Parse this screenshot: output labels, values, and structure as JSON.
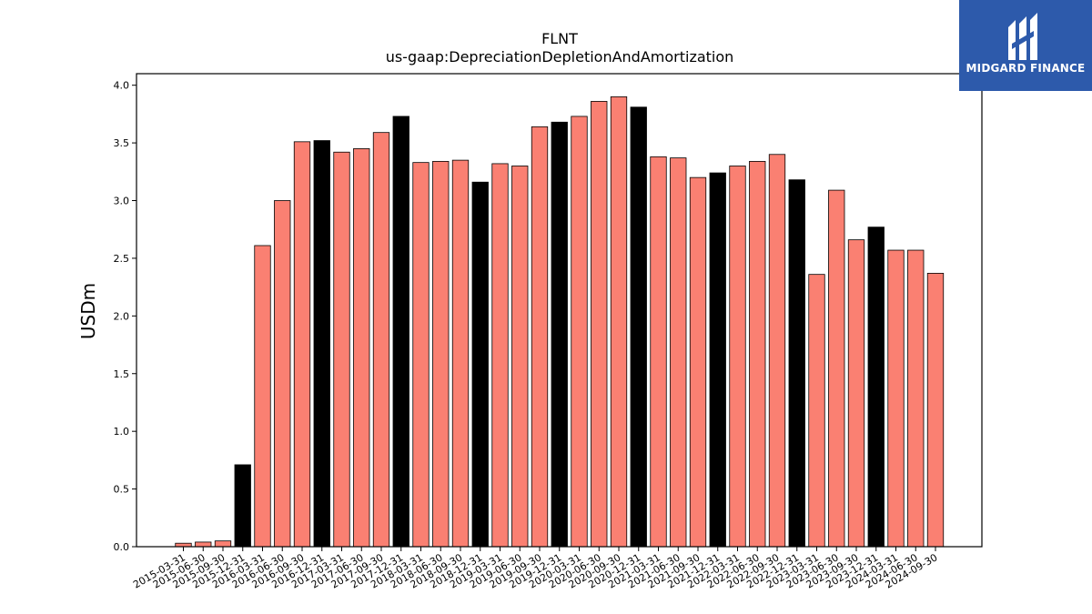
{
  "brand": {
    "logo_text": "MIDGARD FINANCE",
    "logo_color": "#2d5aab"
  },
  "chart_data": {
    "type": "bar",
    "title": "FLNT",
    "subtitle": "us-gaap:DepreciationDepletionAndAmortization",
    "xlabel": "",
    "ylabel": "USDm",
    "ylim": [
      0,
      4.1
    ],
    "yticks": [
      0.0,
      0.5,
      1.0,
      1.5,
      2.0,
      2.5,
      3.0,
      3.5,
      4.0
    ],
    "grid": false,
    "colors": {
      "quarter": "#fa8072",
      "year_end": "#000000"
    },
    "categories": [
      "2015-03-31",
      "2015-06-30",
      "2015-09-30",
      "2015-12-31",
      "2016-03-31",
      "2016-06-30",
      "2016-09-30",
      "2016-12-31",
      "2017-03-31",
      "2017-06-30",
      "2017-09-30",
      "2017-12-31",
      "2018-03-31",
      "2018-06-30",
      "2018-09-30",
      "2018-12-31",
      "2019-03-31",
      "2019-06-30",
      "2019-09-30",
      "2019-12-31",
      "2020-03-31",
      "2020-06-30",
      "2020-09-30",
      "2020-12-31",
      "2021-03-31",
      "2021-06-30",
      "2021-09-30",
      "2021-12-31",
      "2022-03-31",
      "2022-06-30",
      "2022-09-30",
      "2022-12-31",
      "2023-03-31",
      "2023-06-30",
      "2023-09-30",
      "2023-12-31",
      "2024-03-31",
      "2024-06-30",
      "2024-09-30"
    ],
    "values": [
      0.03,
      0.04,
      0.05,
      0.71,
      2.61,
      3.0,
      3.51,
      3.52,
      3.42,
      3.45,
      3.59,
      3.73,
      3.33,
      3.34,
      3.35,
      3.16,
      3.32,
      3.3,
      3.64,
      3.68,
      3.73,
      3.86,
      3.9,
      3.81,
      3.38,
      3.37,
      3.2,
      3.24,
      3.3,
      3.34,
      3.4,
      3.18,
      2.36,
      3.09,
      2.66,
      2.77,
      2.57,
      2.57,
      2.37
    ]
  }
}
